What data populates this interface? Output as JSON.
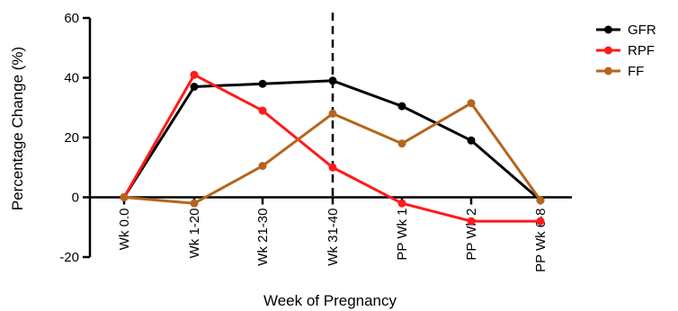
{
  "chart_data": {
    "type": "line",
    "title": "",
    "xlabel": "Week of Pregnancy",
    "ylabel": "Percentage Change (%)",
    "categories": [
      "Wk 0.0",
      "Wk 1-20",
      "Wk 21-30",
      "Wk 31-40",
      "PP Wk 1",
      "PP Wk 2",
      "PP Wk 6-8"
    ],
    "ylim": [
      -20,
      60
    ],
    "yticks": [
      -20,
      0,
      20,
      40,
      60
    ],
    "grid": false,
    "legend_position": "right",
    "annotations": [
      {
        "type": "vertical-dashed-line",
        "at_category": "Wk 31-40"
      }
    ],
    "series": [
      {
        "name": "GFR",
        "color": "#000000",
        "values": [
          0,
          37,
          38,
          39,
          30.5,
          19,
          -1
        ]
      },
      {
        "name": "RPF",
        "color": "#ff1a1a",
        "values": [
          0,
          41,
          29,
          10,
          -2,
          -8,
          -8
        ]
      },
      {
        "name": "FF",
        "color": "#b5651d",
        "values": [
          0,
          -2,
          10.5,
          28,
          18,
          31.5,
          -1
        ]
      }
    ]
  }
}
